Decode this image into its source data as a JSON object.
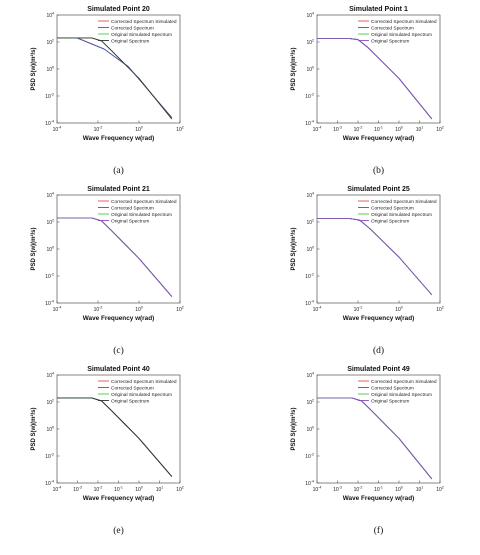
{
  "figure": {
    "panels_label": [
      "(a)",
      "(b)",
      "(c)",
      "(d)",
      "(e)",
      "(f)"
    ]
  },
  "chart_data": [
    {
      "type": "line",
      "panel_label": "(a)",
      "title": "Simulated Point 20",
      "xlabel": "Wave Frequency w(rad)",
      "ylabel": "PSD S(w)(m²/s)",
      "xscale": "log",
      "yscale": "log",
      "xlim": [
        0.0001,
        100
      ],
      "ylim": [
        0.0001,
        10000
      ],
      "xticks": [
        -4,
        -2,
        0,
        2
      ],
      "yticks": [
        -4,
        -2,
        0,
        2,
        4
      ],
      "legend_position": "top-right",
      "series": [
        {
          "name": "Corrected Spectrum Simulated",
          "color": "#e8504a",
          "points": [
            [
              0.001,
              200
            ],
            [
              0.02,
              30
            ],
            [
              0.3,
              1.5
            ],
            [
              5,
              0.01
            ],
            [
              40,
              0.00025
            ]
          ]
        },
        {
          "name": "Corrected Spectrum",
          "color": "#3a55c8",
          "points": [
            [
              0.001,
              190
            ],
            [
              0.02,
              30
            ],
            [
              0.3,
              1.5
            ],
            [
              5,
              0.01
            ],
            [
              40,
              0.00025
            ]
          ]
        },
        {
          "name": "Original Simulated Spectrum",
          "color": "#48c848",
          "points": [
            [
              0.0001,
              200
            ],
            [
              0.005,
              200
            ],
            [
              0.015,
              120
            ],
            [
              0.05,
              20
            ],
            [
              1,
              0.2
            ],
            [
              40,
              0.0002
            ]
          ]
        },
        {
          "name": "Original Spectrum",
          "color": "#333333",
          "points": [
            [
              0.0001,
              200
            ],
            [
              0.005,
              200
            ],
            [
              0.015,
              120
            ],
            [
              0.05,
              20
            ],
            [
              1,
              0.2
            ],
            [
              40,
              0.0002
            ]
          ]
        }
      ]
    },
    {
      "type": "line",
      "panel_label": "(b)",
      "title": "Simulated Point 1",
      "xlabel": "Wave Frequency w(rad)",
      "ylabel": "PSD S(w)(m²/s)",
      "xscale": "log",
      "yscale": "log",
      "xlim": [
        0.0001,
        100
      ],
      "ylim": [
        0.0001,
        10000
      ],
      "xticks": [
        -4,
        -3,
        -2,
        -1,
        0,
        1,
        2
      ],
      "yticks": [
        -4,
        -2,
        0,
        2,
        4
      ],
      "legend_position": "top-right",
      "series": [
        {
          "name": "Corrected Spectrum Simulated",
          "color": "#e8504a",
          "points": [
            [
              0.0001,
              180
            ],
            [
              0.004,
              180
            ],
            [
              0.01,
              150
            ],
            [
              0.03,
              40
            ],
            [
              1,
              0.2
            ],
            [
              40,
              0.0002
            ]
          ]
        },
        {
          "name": "Corrected Spectrum",
          "color": "#3a55c8",
          "points": [
            [
              0.0001,
              180
            ],
            [
              0.004,
              180
            ],
            [
              0.01,
              150
            ],
            [
              0.03,
              40
            ],
            [
              1,
              0.2
            ],
            [
              40,
              0.0002
            ]
          ]
        },
        {
          "name": "Original Simulated Spectrum",
          "color": "#48c848",
          "points": [
            [
              0.0001,
              180
            ],
            [
              0.004,
              180
            ],
            [
              0.01,
              150
            ],
            [
              0.03,
              40
            ],
            [
              1,
              0.2
            ],
            [
              40,
              0.0002
            ]
          ]
        },
        {
          "name": "Original Spectrum",
          "color": "#8a4fc0",
          "points": [
            [
              0.0001,
              180
            ],
            [
              0.004,
              180
            ],
            [
              0.01,
              150
            ],
            [
              0.03,
              40
            ],
            [
              1,
              0.2
            ],
            [
              40,
              0.0002
            ]
          ]
        }
      ]
    },
    {
      "type": "line",
      "panel_label": "(c)",
      "title": "Simulated Point 21",
      "xlabel": "Wave Frequency w(rad)",
      "ylabel": "PSD S(w)(m²/s)",
      "xscale": "log",
      "yscale": "log",
      "xlim": [
        0.0001,
        100
      ],
      "ylim": [
        0.0001,
        10000
      ],
      "xticks": [
        -4,
        -2,
        0,
        2
      ],
      "yticks": [
        -4,
        -2,
        0,
        2,
        4
      ],
      "legend_position": "top-right",
      "series": [
        {
          "name": "Corrected Spectrum Simulated",
          "color": "#e8504a",
          "points": [
            [
              0.0001,
              200
            ],
            [
              0.005,
              200
            ],
            [
              0.015,
              120
            ],
            [
              0.05,
              20
            ],
            [
              1,
              0.2
            ],
            [
              40,
              0.0003
            ]
          ]
        },
        {
          "name": "Corrected Spectrum",
          "color": "#3a55c8",
          "points": [
            [
              0.0001,
              200
            ],
            [
              0.005,
              200
            ],
            [
              0.015,
              120
            ],
            [
              0.05,
              20
            ],
            [
              1,
              0.2
            ],
            [
              40,
              0.0003
            ]
          ]
        },
        {
          "name": "Original Simulated Spectrum",
          "color": "#48c848",
          "points": [
            [
              0.0001,
              200
            ],
            [
              0.005,
              200
            ],
            [
              0.015,
              120
            ],
            [
              0.05,
              20
            ],
            [
              1,
              0.2
            ],
            [
              40,
              0.0003
            ]
          ]
        },
        {
          "name": "Original Spectrum",
          "color": "#8a4fc0",
          "points": [
            [
              0.0001,
              200
            ],
            [
              0.005,
              200
            ],
            [
              0.015,
              120
            ],
            [
              0.05,
              20
            ],
            [
              1,
              0.2
            ],
            [
              40,
              0.0003
            ]
          ]
        }
      ]
    },
    {
      "type": "line",
      "panel_label": "(d)",
      "title": "Simulated Point 25",
      "xlabel": "Wave Frequency w(rad)",
      "ylabel": "PSD S(w)(m²/s)",
      "xscale": "log",
      "yscale": "log",
      "xlim": [
        0.0001,
        100
      ],
      "ylim": [
        0.0001,
        10000
      ],
      "xticks": [
        -4,
        -2,
        0,
        2
      ],
      "yticks": [
        -4,
        -2,
        0,
        2,
        4
      ],
      "legend_position": "top-right",
      "series": [
        {
          "name": "Corrected Spectrum Simulated",
          "color": "#e8504a",
          "points": [
            [
              0.0001,
              180
            ],
            [
              0.004,
              180
            ],
            [
              0.012,
              140
            ],
            [
              0.04,
              30
            ],
            [
              1,
              0.25
            ],
            [
              40,
              0.0004
            ]
          ]
        },
        {
          "name": "Corrected Spectrum",
          "color": "#3a55c8",
          "points": [
            [
              0.0001,
              180
            ],
            [
              0.004,
              180
            ],
            [
              0.012,
              140
            ],
            [
              0.04,
              30
            ],
            [
              1,
              0.25
            ],
            [
              40,
              0.0004
            ]
          ]
        },
        {
          "name": "Original Simulated Spectrum",
          "color": "#48c848",
          "points": [
            [
              0.0001,
              180
            ],
            [
              0.004,
              180
            ],
            [
              0.012,
              140
            ],
            [
              0.04,
              30
            ],
            [
              1,
              0.25
            ],
            [
              40,
              0.0004
            ]
          ]
        },
        {
          "name": "Original Spectrum",
          "color": "#8a4fc0",
          "points": [
            [
              0.0001,
              180
            ],
            [
              0.004,
              180
            ],
            [
              0.012,
              140
            ],
            [
              0.04,
              30
            ],
            [
              1,
              0.25
            ],
            [
              40,
              0.0004
            ]
          ]
        }
      ]
    },
    {
      "type": "line",
      "panel_label": "(e)",
      "title": "Simulated Point 40",
      "xlabel": "Wave Frequency w(rad)",
      "ylabel": "PSD S(w)(m²/s)",
      "xscale": "log",
      "yscale": "log",
      "xlim": [
        0.0001,
        100
      ],
      "ylim": [
        0.0001,
        10000
      ],
      "xticks": [
        -4,
        -3,
        -2,
        -1,
        0,
        1,
        2
      ],
      "yticks": [
        -4,
        -2,
        0,
        2,
        4
      ],
      "legend_position": "top-right",
      "series": [
        {
          "name": "Corrected Spectrum Simulated",
          "color": "#e8504a",
          "points": [
            [
              0.0001,
              200
            ],
            [
              0.005,
              200
            ],
            [
              0.015,
              120
            ],
            [
              0.05,
              20
            ],
            [
              1,
              0.2
            ],
            [
              40,
              0.0003
            ]
          ]
        },
        {
          "name": "Corrected Spectrum",
          "color": "#3a55c8",
          "points": [
            [
              0.0001,
              200
            ],
            [
              0.005,
              200
            ],
            [
              0.015,
              120
            ],
            [
              0.05,
              20
            ],
            [
              1,
              0.2
            ],
            [
              40,
              0.0003
            ]
          ]
        },
        {
          "name": "Original Simulated Spectrum",
          "color": "#48c848",
          "points": [
            [
              0.0001,
              200
            ],
            [
              0.005,
              200
            ],
            [
              0.015,
              120
            ],
            [
              0.05,
              20
            ],
            [
              1,
              0.2
            ],
            [
              40,
              0.0003
            ]
          ]
        },
        {
          "name": "Original Spectrum",
          "color": "#333333",
          "points": [
            [
              0.0001,
              200
            ],
            [
              0.005,
              200
            ],
            [
              0.015,
              120
            ],
            [
              0.05,
              20
            ],
            [
              1,
              0.2
            ],
            [
              40,
              0.0003
            ]
          ]
        }
      ]
    },
    {
      "type": "line",
      "panel_label": "(f)",
      "title": "Simulated Point 49",
      "xlabel": "Wave Frequency w(rad)",
      "ylabel": "PSD S(w)(m²/s)",
      "xscale": "log",
      "yscale": "log",
      "xlim": [
        0.0001,
        100
      ],
      "ylim": [
        0.0001,
        10000
      ],
      "xticks": [
        -4,
        -3,
        -2,
        -1,
        0,
        1,
        2
      ],
      "yticks": [
        -4,
        -2,
        0,
        2,
        4
      ],
      "legend_position": "top-right",
      "series": [
        {
          "name": "Corrected Spectrum Simulated",
          "color": "#e8504a",
          "points": [
            [
              0.0001,
              200
            ],
            [
              0.005,
              200
            ],
            [
              0.015,
              120
            ],
            [
              0.05,
              20
            ],
            [
              1,
              0.2
            ],
            [
              40,
              0.0002
            ]
          ]
        },
        {
          "name": "Corrected Spectrum",
          "color": "#3a55c8",
          "points": [
            [
              0.0001,
              200
            ],
            [
              0.005,
              200
            ],
            [
              0.015,
              120
            ],
            [
              0.05,
              20
            ],
            [
              1,
              0.2
            ],
            [
              40,
              0.0002
            ]
          ]
        },
        {
          "name": "Original Simulated Spectrum",
          "color": "#48c848",
          "points": [
            [
              0.0001,
              200
            ],
            [
              0.005,
              200
            ],
            [
              0.015,
              120
            ],
            [
              0.05,
              20
            ],
            [
              1,
              0.2
            ],
            [
              40,
              0.0002
            ]
          ]
        },
        {
          "name": "Original Spectrum",
          "color": "#8a4fc0",
          "points": [
            [
              0.0001,
              200
            ],
            [
              0.005,
              200
            ],
            [
              0.015,
              120
            ],
            [
              0.05,
              20
            ],
            [
              1,
              0.2
            ],
            [
              40,
              0.0002
            ]
          ]
        }
      ]
    }
  ]
}
